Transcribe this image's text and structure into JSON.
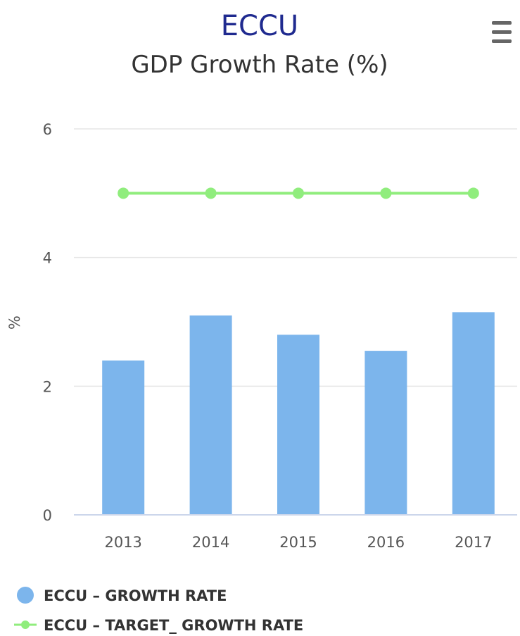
{
  "chart_data": {
    "type": "bar",
    "title": "ECCU",
    "subtitle": "GDP Growth Rate (%)",
    "xlabel": "",
    "ylabel": "%",
    "categories": [
      "2013",
      "2014",
      "2015",
      "2016",
      "2017"
    ],
    "ylim": [
      0,
      6
    ],
    "yticks": [
      0,
      2,
      4,
      6
    ],
    "grid": true,
    "legend_position": "bottom-left",
    "series": [
      {
        "name": "ECCU – GROWTH RATE",
        "type": "bar",
        "color": "#7cb5ec",
        "values": [
          2.4,
          3.1,
          2.8,
          2.55,
          3.15
        ]
      },
      {
        "name": "ECCU – TARGET_ GROWTH RATE",
        "type": "line",
        "color": "#90ed7d",
        "values": [
          5,
          5,
          5,
          5,
          5
        ]
      }
    ]
  },
  "menu_icon": "hamburger-menu-icon"
}
